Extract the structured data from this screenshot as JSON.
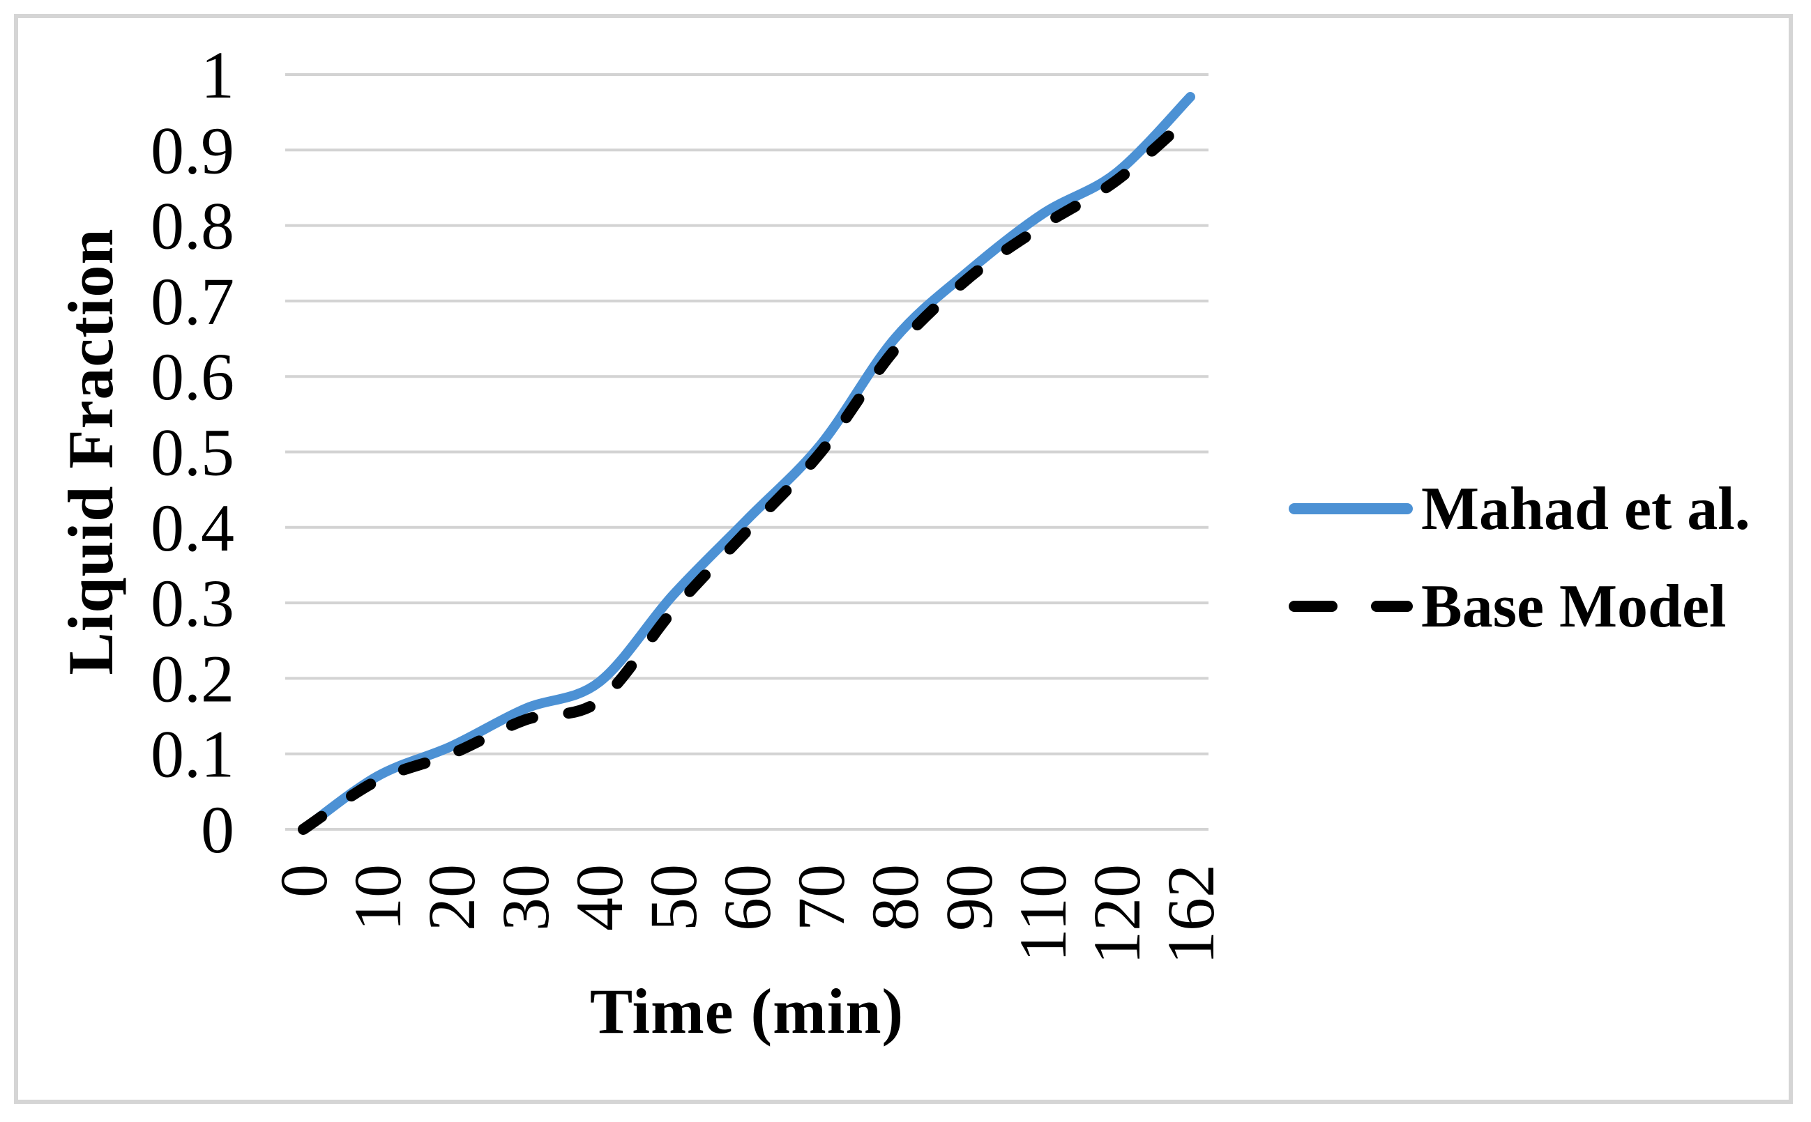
{
  "chart_data": {
    "type": "line",
    "title": "",
    "xlabel": "Time (min)",
    "ylabel": "Liquid Fraction",
    "categories": [
      "0",
      "10",
      "20",
      "30",
      "40",
      "50",
      "60",
      "70",
      "80",
      "90",
      "110",
      "120",
      "162"
    ],
    "y_ticks": [
      "0",
      "0.1",
      "0.2",
      "0.3",
      "0.4",
      "0.5",
      "0.6",
      "0.7",
      "0.8",
      "0.9",
      "1"
    ],
    "ylim": [
      0,
      1
    ],
    "x_axis_type": "categorical",
    "grid": "horizontal-only",
    "grid_color": "#d3d3d3",
    "line_style": "smoothed",
    "legend_position": "right",
    "series": [
      {
        "name": "Mahad et al.",
        "color": "#4c91d4",
        "dash": "solid",
        "values": [
          0,
          0.07,
          0.11,
          0.16,
          0.195,
          0.31,
          0.41,
          0.51,
          0.65,
          0.74,
          0.815,
          0.87,
          0.97
        ]
      },
      {
        "name": "Base Model",
        "color": "#000000",
        "dash": "dashed",
        "values": [
          0,
          0.065,
          0.1,
          0.145,
          0.17,
          0.29,
          0.395,
          0.5,
          0.635,
          0.73,
          0.8,
          0.86,
          0.945
        ]
      }
    ]
  }
}
